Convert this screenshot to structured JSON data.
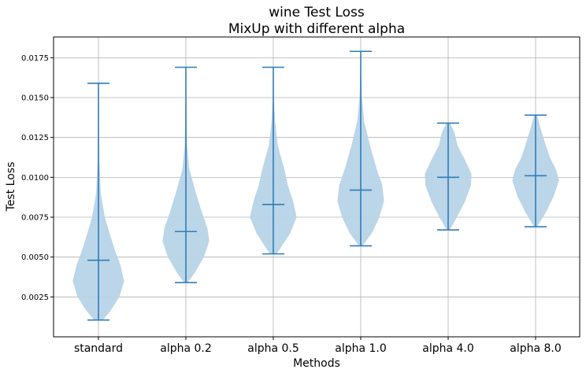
{
  "chart_data": {
    "type": "violin",
    "title": "wine Test Loss",
    "subtitle": "MixUp with different alpha",
    "xlabel": "Methods",
    "ylabel": "Test Loss",
    "ylim": [
      0.0,
      0.0188
    ],
    "yticks": [
      "0.0025",
      "0.0050",
      "0.0075",
      "0.0100",
      "0.0125",
      "0.0150",
      "0.0175"
    ],
    "grid": true,
    "colors": {
      "body": "#b7d3e8",
      "line": "#2f7db5",
      "grid": "#b0b0b0"
    },
    "categories": [
      "standard",
      "alpha 0.2",
      "alpha 0.5",
      "alpha 1.0",
      "alpha 4.0",
      "alpha 8.0"
    ],
    "series": [
      {
        "min": 0.00105,
        "max": 0.0159,
        "mean": 0.0048,
        "profile": [
          [
            0.00105,
            0.15
          ],
          [
            0.0016,
            0.4
          ],
          [
            0.0025,
            0.72
          ],
          [
            0.0035,
            0.88
          ],
          [
            0.0045,
            0.75
          ],
          [
            0.0055,
            0.55
          ],
          [
            0.0065,
            0.38
          ],
          [
            0.0075,
            0.22
          ],
          [
            0.009,
            0.08
          ],
          [
            0.011,
            0.03
          ],
          [
            0.013,
            0.015
          ],
          [
            0.0159,
            0.01
          ]
        ]
      },
      {
        "min": 0.0034,
        "max": 0.0169,
        "mean": 0.0066,
        "profile": [
          [
            0.0034,
            0.06
          ],
          [
            0.004,
            0.3
          ],
          [
            0.005,
            0.62
          ],
          [
            0.006,
            0.8
          ],
          [
            0.0068,
            0.74
          ],
          [
            0.0078,
            0.55
          ],
          [
            0.009,
            0.35
          ],
          [
            0.0105,
            0.12
          ],
          [
            0.012,
            0.04
          ],
          [
            0.0145,
            0.015
          ],
          [
            0.0169,
            0.01
          ]
        ]
      },
      {
        "min": 0.0052,
        "max": 0.0169,
        "mean": 0.0083,
        "profile": [
          [
            0.0052,
            0.12
          ],
          [
            0.0065,
            0.58
          ],
          [
            0.0075,
            0.8
          ],
          [
            0.0085,
            0.68
          ],
          [
            0.0095,
            0.5
          ],
          [
            0.0105,
            0.38
          ],
          [
            0.012,
            0.15
          ],
          [
            0.0135,
            0.06
          ],
          [
            0.015,
            0.02
          ],
          [
            0.0169,
            0.01
          ]
        ]
      },
      {
        "min": 0.0057,
        "max": 0.0179,
        "mean": 0.0092,
        "profile": [
          [
            0.0057,
            0.06
          ],
          [
            0.0065,
            0.38
          ],
          [
            0.0075,
            0.64
          ],
          [
            0.0085,
            0.8
          ],
          [
            0.0095,
            0.74
          ],
          [
            0.0105,
            0.55
          ],
          [
            0.012,
            0.32
          ],
          [
            0.0135,
            0.12
          ],
          [
            0.015,
            0.04
          ],
          [
            0.0165,
            0.015
          ],
          [
            0.0179,
            0.01
          ]
        ]
      },
      {
        "min": 0.0067,
        "max": 0.0134,
        "mean": 0.01,
        "profile": [
          [
            0.0067,
            0.05
          ],
          [
            0.0075,
            0.3
          ],
          [
            0.0085,
            0.58
          ],
          [
            0.0095,
            0.78
          ],
          [
            0.0102,
            0.8
          ],
          [
            0.011,
            0.6
          ],
          [
            0.012,
            0.32
          ],
          [
            0.0128,
            0.22
          ],
          [
            0.0134,
            0.06
          ]
        ]
      },
      {
        "min": 0.0069,
        "max": 0.0139,
        "mean": 0.0101,
        "profile": [
          [
            0.0069,
            0.05
          ],
          [
            0.0078,
            0.35
          ],
          [
            0.0088,
            0.62
          ],
          [
            0.0098,
            0.8
          ],
          [
            0.0105,
            0.7
          ],
          [
            0.0112,
            0.5
          ],
          [
            0.012,
            0.35
          ],
          [
            0.013,
            0.18
          ],
          [
            0.0139,
            0.05
          ]
        ]
      }
    ]
  }
}
